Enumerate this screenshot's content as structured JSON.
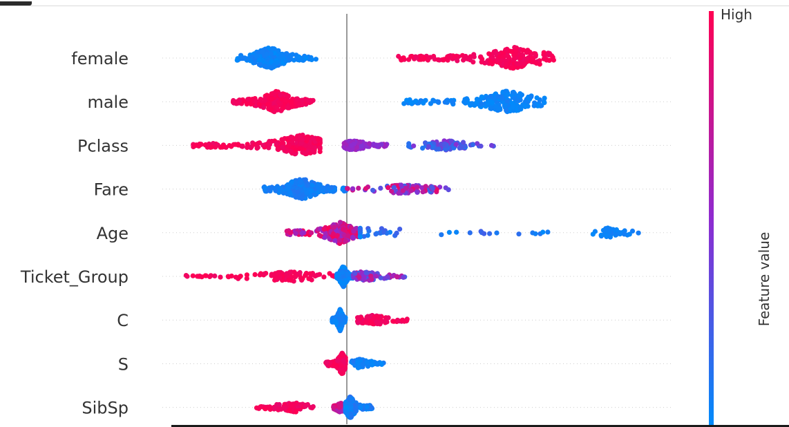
{
  "chart_data": {
    "type": "scatter",
    "subtype": "beeswarm",
    "features": [
      {
        "name": "female",
        "clusters": [
          {
            "from": -1.65,
            "to": -0.45,
            "color_low": 0.0,
            "color_high": 0.08,
            "density": "high",
            "peak": -1.15
          },
          {
            "from": 0.75,
            "to": 3.1,
            "color_low": 0.92,
            "color_high": 1.0,
            "density": "high",
            "peak": 2.5
          }
        ]
      },
      {
        "name": "male",
        "clusters": [
          {
            "from": -1.7,
            "to": -0.5,
            "color_low": 0.92,
            "color_high": 1.0,
            "density": "high",
            "peak": -1.05
          },
          {
            "from": 0.85,
            "to": 2.95,
            "color_low": 0.0,
            "color_high": 0.08,
            "density": "high",
            "peak": 2.4
          }
        ]
      },
      {
        "name": "Pclass",
        "clusters": [
          {
            "from": -2.3,
            "to": -0.4,
            "color_low": 0.92,
            "color_high": 1.0,
            "density": "high",
            "peak": -0.68
          },
          {
            "from": -0.05,
            "to": 0.6,
            "color_low": 0.45,
            "color_high": 0.6,
            "density": "medium",
            "peak": 0.1
          },
          {
            "from": 0.9,
            "to": 2.2,
            "color_low": 0.1,
            "color_high": 0.5,
            "density": "medium",
            "peak": 1.45
          }
        ]
      },
      {
        "name": "Fare",
        "clusters": [
          {
            "from": -1.25,
            "to": 0.0,
            "color_low": 0.02,
            "color_high": 0.12,
            "density": "high",
            "peak": -0.68
          },
          {
            "from": 0.0,
            "to": 1.55,
            "color_low": 0.2,
            "color_high": 0.9,
            "density": "medium",
            "peak": 0.9
          }
        ]
      },
      {
        "name": "Age",
        "clusters": [
          {
            "from": -0.9,
            "to": 0.2,
            "color_low": 0.5,
            "color_high": 1.0,
            "density": "high",
            "peak": -0.1
          },
          {
            "from": 0.2,
            "to": 3.3,
            "color_low": 0.0,
            "color_high": 0.25,
            "density": "low",
            "peak": 0.3
          },
          {
            "from": 3.6,
            "to": 4.5,
            "color_low": 0.0,
            "color_high": 0.08,
            "density": "low",
            "peak": 3.9
          }
        ]
      },
      {
        "name": "Ticket_Group",
        "clusters": [
          {
            "from": -2.4,
            "to": -0.1,
            "color_low": 0.92,
            "color_high": 1.0,
            "density": "medium",
            "peak": -0.8
          },
          {
            "from": -0.15,
            "to": 0.1,
            "color_low": 0.0,
            "color_high": 0.1,
            "density": "high",
            "peak": -0.05
          },
          {
            "from": 0.1,
            "to": 0.9,
            "color_low": 0.2,
            "color_high": 0.8,
            "density": "medium",
            "peak": 0.25
          }
        ]
      },
      {
        "name": "C",
        "clusters": [
          {
            "from": -0.22,
            "to": -0.02,
            "color_low": 0.0,
            "color_high": 0.1,
            "density": "high",
            "peak": -0.1
          },
          {
            "from": 0.15,
            "to": 0.9,
            "color_low": 0.9,
            "color_high": 1.0,
            "density": "medium",
            "peak": 0.4
          }
        ]
      },
      {
        "name": "S",
        "clusters": [
          {
            "from": -0.32,
            "to": -0.02,
            "color_low": 0.9,
            "color_high": 1.0,
            "density": "high",
            "peak": -0.07
          },
          {
            "from": 0.05,
            "to": 0.55,
            "color_low": 0.0,
            "color_high": 0.1,
            "density": "medium",
            "peak": 0.2
          }
        ]
      },
      {
        "name": "SibSp",
        "clusters": [
          {
            "from": -1.35,
            "to": -0.45,
            "color_low": 0.88,
            "color_high": 1.0,
            "density": "medium",
            "peak": -0.8
          },
          {
            "from": -0.2,
            "to": 0.0,
            "color_low": 0.6,
            "color_high": 0.9,
            "density": "medium",
            "peak": -0.1
          },
          {
            "from": -0.02,
            "to": 0.38,
            "color_low": 0.0,
            "color_high": 0.15,
            "density": "high",
            "peak": 0.05
          }
        ]
      }
    ],
    "xlim": [
      -2.6,
      5.2
    ],
    "zero_line": 0,
    "colorbar": {
      "label": "Feature value",
      "high_label": "High",
      "low_color": "#008bfb",
      "high_color": "#ff0052"
    },
    "grid": false,
    "legend": "right colorbar"
  }
}
